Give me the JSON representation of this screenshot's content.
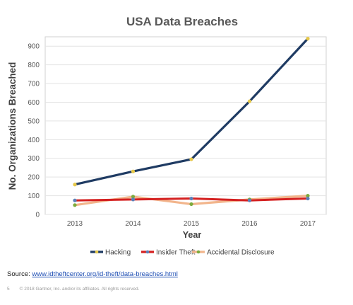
{
  "chart_data": {
    "type": "line",
    "title": "USA Data Breaches",
    "xlabel": "Year",
    "ylabel": "No. Organizations Breached",
    "categories": [
      "2013",
      "2014",
      "2015",
      "2016",
      "2017"
    ],
    "ylim": [
      0,
      950
    ],
    "yticks": [
      0,
      100,
      200,
      300,
      400,
      500,
      600,
      700,
      800,
      900
    ],
    "grid": true,
    "legend": "bottom",
    "series": [
      {
        "name": "Hacking",
        "values": [
          160,
          230,
          295,
          605,
          940
        ],
        "color": "#1f3b63",
        "marker_color": "#e6c84a"
      },
      {
        "name": "Insider Theft",
        "values": [
          75,
          80,
          85,
          75,
          85
        ],
        "color": "#d42020",
        "marker_color": "#5b7fb8"
      },
      {
        "name": "Accidental Disclosure",
        "values": [
          50,
          95,
          55,
          80,
          100
        ],
        "color": "#f2b58c",
        "marker_color": "#7caa3c"
      }
    ]
  },
  "source": {
    "label": "Source: ",
    "link_text": "www.idtheftcenter.org/id-theft/data-breaches.html"
  },
  "footer": {
    "page_number": "5",
    "copyright": "© 2018 Gartner, Inc. and/or its affiliates. All rights reserved."
  }
}
